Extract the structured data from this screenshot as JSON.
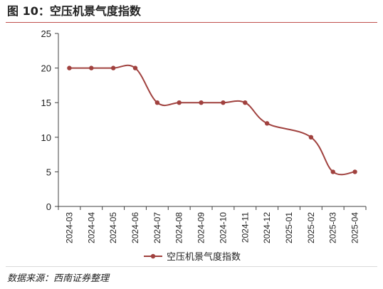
{
  "figure_title": "图 10：空压机景气度指数",
  "source_note": "数据来源：西南证券整理",
  "colors": {
    "series": "#a0413e",
    "axis": "#404040",
    "title_rule": "#c0504d"
  },
  "chart_data": {
    "type": "line",
    "title": "",
    "xlabel": "",
    "ylabel": "",
    "categories": [
      "2024-03",
      "2024-04",
      "2024-05",
      "2024-06",
      "2024-07",
      "2024-08",
      "2024-09",
      "2024-10",
      "2024-11",
      "2024-12",
      "2025-01",
      "2025-02",
      "2025-03",
      "2025-04"
    ],
    "series": [
      {
        "name": "空压机景气度指数",
        "values": [
          20,
          20,
          20,
          20,
          15,
          15,
          15,
          15,
          15,
          12,
          null,
          10,
          5,
          5
        ]
      }
    ],
    "yticks": [
      0,
      5,
      10,
      15,
      20,
      25
    ],
    "ylim": [
      0,
      25
    ],
    "grid": false,
    "legend": "bottom",
    "smooth": true
  }
}
